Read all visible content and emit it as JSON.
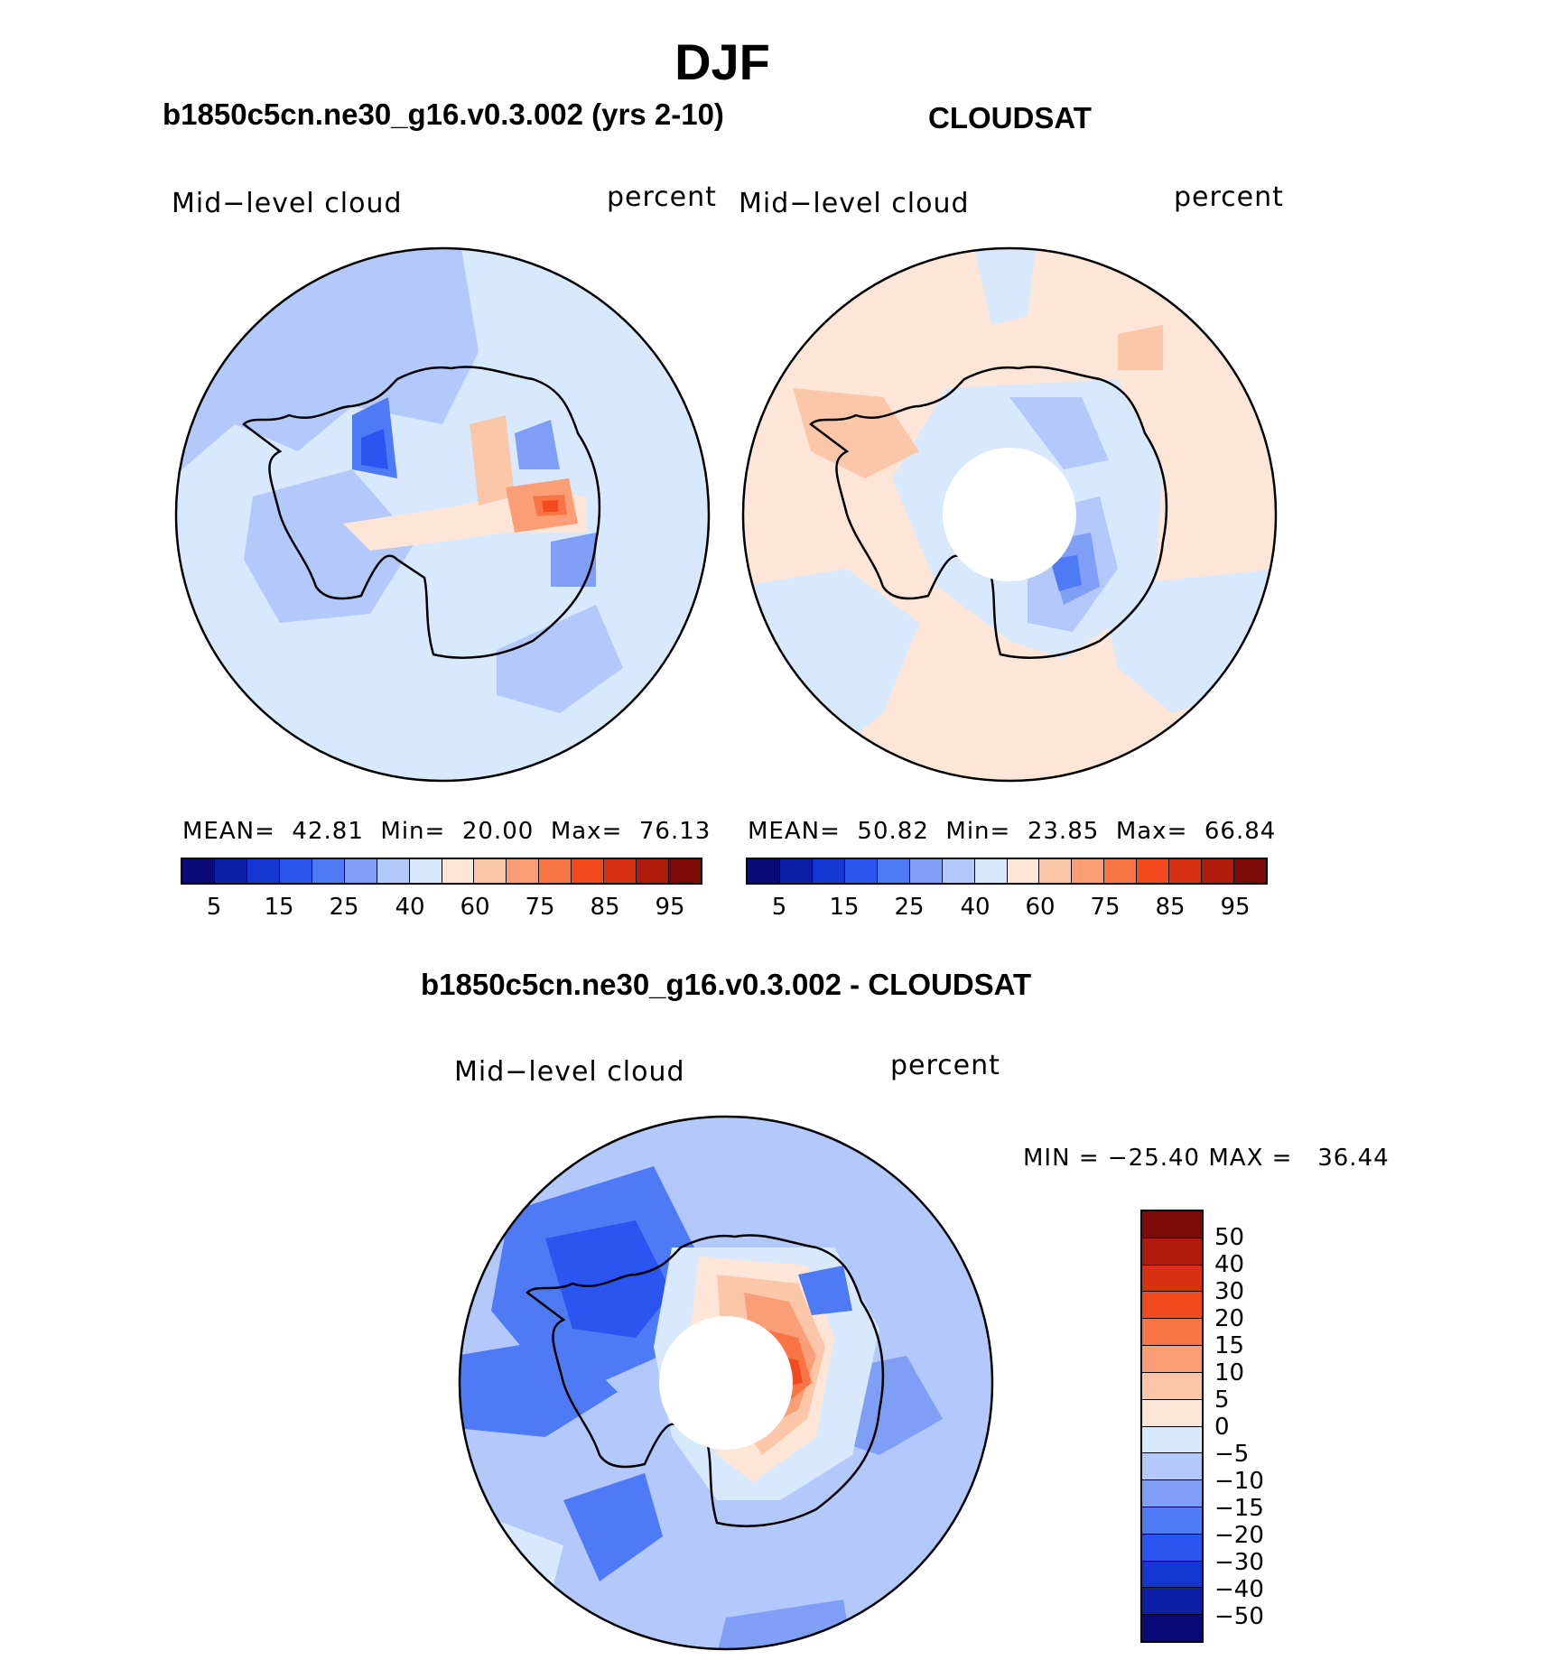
{
  "page_title": "DJF",
  "panels": [
    {
      "title": "b1850c5cn.ne30_g16.v0.3.002 (yrs 2-10)",
      "variable": "Mid−level cloud",
      "units": "percent",
      "stats": {
        "mean_label": "MEAN=",
        "mean": "42.81",
        "min_label": "Min=",
        "min": "20.00",
        "max_label": "Max=",
        "max": "76.13"
      },
      "colorbar_ticks": [
        "5",
        "15",
        "25",
        "40",
        "60",
        "75",
        "85",
        "95"
      ]
    },
    {
      "title": "CLOUDSAT",
      "variable": "Mid−level cloud",
      "units": "percent",
      "stats": {
        "mean_label": "MEAN=",
        "mean": "50.82",
        "min_label": "Min=",
        "min": "23.85",
        "max_label": "Max=",
        "max": "66.84"
      },
      "colorbar_ticks": [
        "5",
        "15",
        "25",
        "40",
        "60",
        "75",
        "85",
        "95"
      ]
    }
  ],
  "diff_panel": {
    "title": "b1850c5cn.ne30_g16.v0.3.002 - CLOUDSAT",
    "variable": "Mid−level cloud",
    "units": "percent",
    "minmax": "MIN = −25.40 MAX =   36.44",
    "colorbar_ticks": [
      "50",
      "40",
      "30",
      "20",
      "15",
      "10",
      "5",
      "0",
      "−5",
      "−10",
      "−15",
      "−20",
      "−30",
      "−40",
      "−50"
    ]
  },
  "colors": {
    "abs_scale": [
      "#0a0a78",
      "#0d1ea8",
      "#1437d4",
      "#2a55f0",
      "#4f7af5",
      "#7f9ff7",
      "#b3c9fb",
      "#d8e8fd",
      "#fde6d8",
      "#fcc6a8",
      "#fa9e78",
      "#f87444",
      "#f24a1e",
      "#d83012",
      "#b01c0c",
      "#7e0a08"
    ],
    "diff_scale": [
      "#7e0a08",
      "#b01c0c",
      "#d83012",
      "#f24a1e",
      "#f87444",
      "#fa9e78",
      "#fcc6a8",
      "#fde6d8",
      "#d8e8fd",
      "#b3c9fb",
      "#7f9ff7",
      "#4f7af5",
      "#2a55f0",
      "#1437d4",
      "#0d1ea8",
      "#0a0a78"
    ]
  }
}
